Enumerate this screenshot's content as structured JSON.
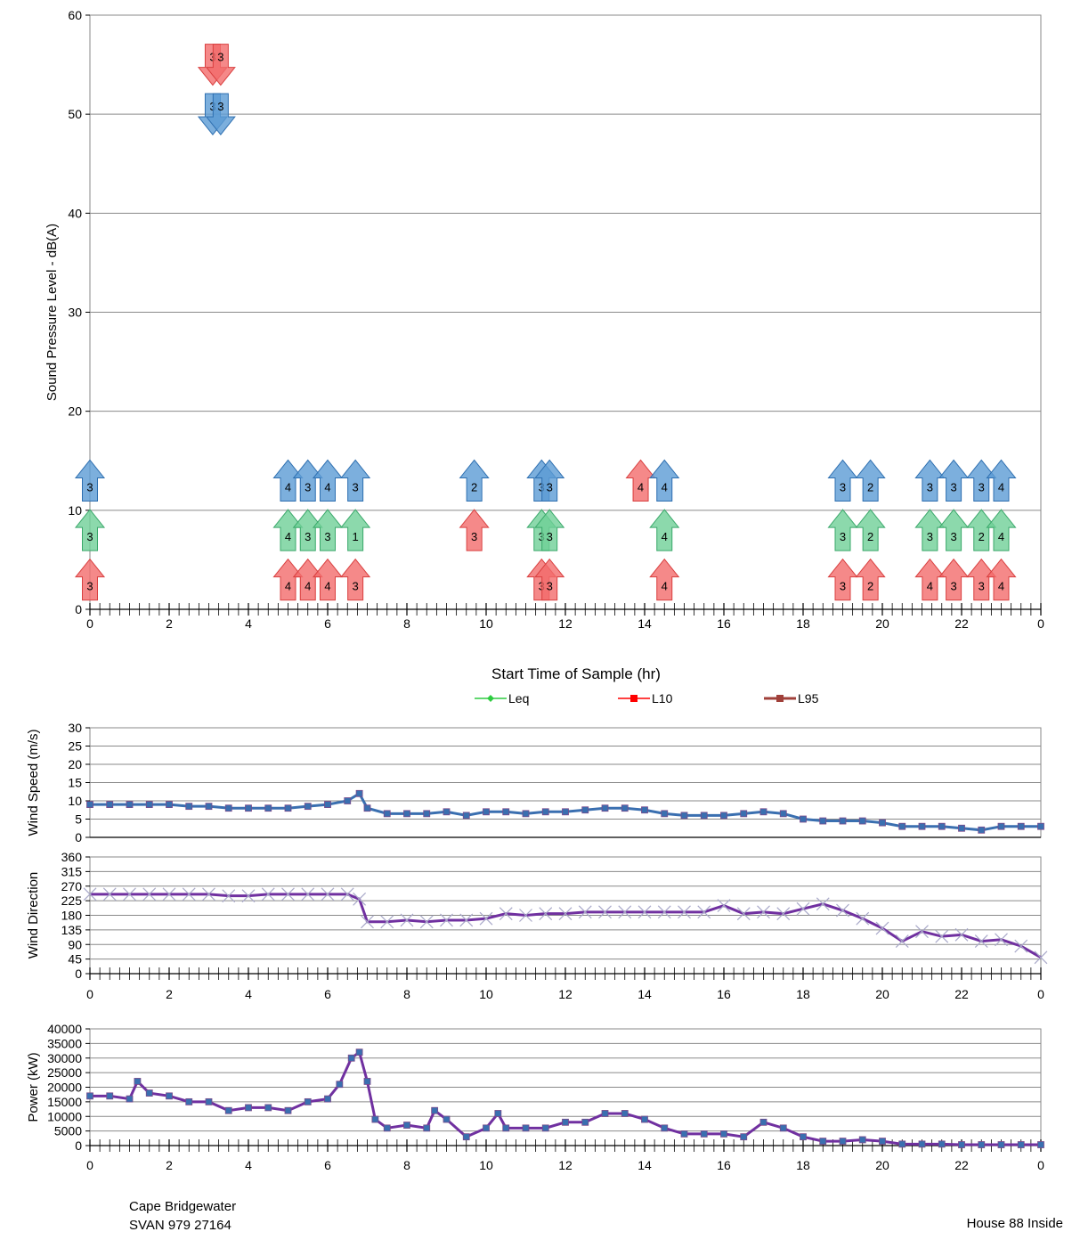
{
  "footer": {
    "site": "Cape Bridgewater",
    "instrument": "SVAN 979 27164",
    "location": "House 88 Inside"
  },
  "colors": {
    "leq": "#2ecc40",
    "l10": "#ff0000",
    "l95": "#a0403a",
    "red_arrow": "#f26b6b",
    "green_arrow": "#6fcf97",
    "blue_arrow": "#5b9bd5",
    "wind_speed": "#3a6fb0",
    "wind_dir": "#7030a0",
    "power": "#7030a0"
  },
  "chart_data": [
    {
      "id": "spl",
      "type": "scatter",
      "title": "",
      "ylabel": "Sound Pressure Level - dB(A)",
      "xlabel": "Start Time of Sample (hr)",
      "ylim": [
        0,
        60
      ],
      "yticks": [
        "0",
        "10",
        "20",
        "30",
        "40",
        "50",
        "60"
      ],
      "xlim": [
        0,
        24
      ],
      "xtick_labels": [
        "0",
        "2",
        "4",
        "6",
        "8",
        "10",
        "12",
        "14",
        "16",
        "18",
        "20",
        "22",
        "0"
      ],
      "grid": true,
      "legend": {
        "placement": "bottom",
        "entries": [
          "Leq",
          "L10",
          "L95"
        ]
      },
      "arrows": [
        {
          "x": 3.1,
          "y": 55,
          "dir": "down",
          "color": "red",
          "label": "3"
        },
        {
          "x": 3.3,
          "y": 55,
          "dir": "down",
          "color": "red",
          "label": "3"
        },
        {
          "x": 3.1,
          "y": 50,
          "dir": "down",
          "color": "blue",
          "label": "3"
        },
        {
          "x": 3.3,
          "y": 50,
          "dir": "down",
          "color": "blue",
          "label": "3"
        },
        {
          "x": 0.0,
          "y": 3,
          "dir": "up",
          "color": "red",
          "label": "3"
        },
        {
          "x": 0.0,
          "y": 8,
          "dir": "up",
          "color": "green",
          "label": "3"
        },
        {
          "x": 0.0,
          "y": 13,
          "dir": "up",
          "color": "blue",
          "label": "3"
        },
        {
          "x": 5.0,
          "y": 3,
          "dir": "up",
          "color": "red",
          "label": "4"
        },
        {
          "x": 5.5,
          "y": 3,
          "dir": "up",
          "color": "red",
          "label": "4"
        },
        {
          "x": 6.0,
          "y": 3,
          "dir": "up",
          "color": "red",
          "label": "4"
        },
        {
          "x": 6.7,
          "y": 3,
          "dir": "up",
          "color": "red",
          "label": "3"
        },
        {
          "x": 5.0,
          "y": 8,
          "dir": "up",
          "color": "green",
          "label": "4"
        },
        {
          "x": 5.5,
          "y": 8,
          "dir": "up",
          "color": "green",
          "label": "3"
        },
        {
          "x": 6.0,
          "y": 8,
          "dir": "up",
          "color": "green",
          "label": "3"
        },
        {
          "x": 6.7,
          "y": 8,
          "dir": "up",
          "color": "green",
          "label": "1"
        },
        {
          "x": 5.0,
          "y": 13,
          "dir": "up",
          "color": "blue",
          "label": "4"
        },
        {
          "x": 5.5,
          "y": 13,
          "dir": "up",
          "color": "blue",
          "label": "3"
        },
        {
          "x": 6.0,
          "y": 13,
          "dir": "up",
          "color": "blue",
          "label": "4"
        },
        {
          "x": 6.7,
          "y": 13,
          "dir": "up",
          "color": "blue",
          "label": "3"
        },
        {
          "x": 9.7,
          "y": 8,
          "dir": "up",
          "color": "red",
          "label": "3"
        },
        {
          "x": 9.7,
          "y": 13,
          "dir": "up",
          "color": "blue",
          "label": "2"
        },
        {
          "x": 11.4,
          "y": 3,
          "dir": "up",
          "color": "red",
          "label": "3"
        },
        {
          "x": 11.6,
          "y": 3,
          "dir": "up",
          "color": "red",
          "label": "3"
        },
        {
          "x": 11.4,
          "y": 8,
          "dir": "up",
          "color": "green",
          "label": "3"
        },
        {
          "x": 11.6,
          "y": 8,
          "dir": "up",
          "color": "green",
          "label": "3"
        },
        {
          "x": 11.4,
          "y": 13,
          "dir": "up",
          "color": "blue",
          "label": "3"
        },
        {
          "x": 11.6,
          "y": 13,
          "dir": "up",
          "color": "blue",
          "label": "3"
        },
        {
          "x": 13.9,
          "y": 13,
          "dir": "up",
          "color": "red",
          "label": "4"
        },
        {
          "x": 14.5,
          "y": 3,
          "dir": "up",
          "color": "red",
          "label": "4"
        },
        {
          "x": 14.5,
          "y": 8,
          "dir": "up",
          "color": "green",
          "label": "4"
        },
        {
          "x": 14.5,
          "y": 13,
          "dir": "up",
          "color": "blue",
          "label": "4"
        },
        {
          "x": 19.0,
          "y": 3,
          "dir": "up",
          "color": "red",
          "label": "3"
        },
        {
          "x": 19.7,
          "y": 3,
          "dir": "up",
          "color": "red",
          "label": "2"
        },
        {
          "x": 19.0,
          "y": 8,
          "dir": "up",
          "color": "green",
          "label": "3"
        },
        {
          "x": 19.7,
          "y": 8,
          "dir": "up",
          "color": "green",
          "label": "2"
        },
        {
          "x": 19.0,
          "y": 13,
          "dir": "up",
          "color": "blue",
          "label": "3"
        },
        {
          "x": 19.7,
          "y": 13,
          "dir": "up",
          "color": "blue",
          "label": "2"
        },
        {
          "x": 21.2,
          "y": 3,
          "dir": "up",
          "color": "red",
          "label": "4"
        },
        {
          "x": 21.8,
          "y": 3,
          "dir": "up",
          "color": "red",
          "label": "3"
        },
        {
          "x": 22.5,
          "y": 3,
          "dir": "up",
          "color": "red",
          "label": "3"
        },
        {
          "x": 23.0,
          "y": 3,
          "dir": "up",
          "color": "red",
          "label": "4"
        },
        {
          "x": 21.2,
          "y": 8,
          "dir": "up",
          "color": "green",
          "label": "3"
        },
        {
          "x": 21.8,
          "y": 8,
          "dir": "up",
          "color": "green",
          "label": "3"
        },
        {
          "x": 22.5,
          "y": 8,
          "dir": "up",
          "color": "green",
          "label": "2"
        },
        {
          "x": 23.0,
          "y": 8,
          "dir": "up",
          "color": "green",
          "label": "4"
        },
        {
          "x": 21.2,
          "y": 13,
          "dir": "up",
          "color": "blue",
          "label": "3"
        },
        {
          "x": 21.8,
          "y": 13,
          "dir": "up",
          "color": "blue",
          "label": "3"
        },
        {
          "x": 22.5,
          "y": 13,
          "dir": "up",
          "color": "blue",
          "label": "3"
        },
        {
          "x": 23.0,
          "y": 13,
          "dir": "up",
          "color": "blue",
          "label": "4"
        }
      ]
    },
    {
      "id": "wind_speed",
      "type": "line",
      "ylabel": "Wind Speed (m/s)",
      "ylim": [
        0,
        30
      ],
      "yticks": [
        "0",
        "5",
        "10",
        "15",
        "20",
        "25",
        "30"
      ],
      "xlim": [
        0,
        24
      ],
      "grid": true,
      "x": [
        0,
        0.5,
        1,
        1.5,
        2,
        2.5,
        3,
        3.5,
        4,
        4.5,
        5,
        5.5,
        6,
        6.5,
        6.8,
        7,
        7.5,
        8,
        8.5,
        9,
        9.5,
        10,
        10.5,
        11,
        11.5,
        12,
        12.5,
        13,
        13.5,
        14,
        14.5,
        15,
        15.5,
        16,
        16.5,
        17,
        17.5,
        18,
        18.5,
        19,
        19.5,
        20,
        20.5,
        21,
        21.5,
        22,
        22.5,
        23,
        23.5,
        24
      ],
      "values": [
        9,
        9,
        9,
        9,
        9,
        8.5,
        8.5,
        8,
        8,
        8,
        8,
        8.5,
        9,
        10,
        12,
        8,
        6.5,
        6.5,
        6.5,
        7,
        6,
        7,
        7,
        6.5,
        7,
        7,
        7.5,
        8,
        8,
        7.5,
        6.5,
        6,
        6,
        6,
        6.5,
        7,
        6.5,
        5,
        4.5,
        4.5,
        4.5,
        4,
        3,
        3,
        3,
        2.5,
        2,
        3,
        3,
        3
      ]
    },
    {
      "id": "wind_direction",
      "type": "line",
      "ylabel": "Wind Direction",
      "ylim": [
        0,
        360
      ],
      "yticks": [
        "0",
        "45",
        "90",
        "135",
        "180",
        "225",
        "270",
        "315",
        "360"
      ],
      "xlim": [
        0,
        24
      ],
      "xtick_labels": [
        "0",
        "2",
        "4",
        "6",
        "8",
        "10",
        "12",
        "14",
        "16",
        "18",
        "20",
        "22",
        "0"
      ],
      "grid": true,
      "x": [
        0,
        0.5,
        1,
        1.5,
        2,
        2.5,
        3,
        3.5,
        4,
        4.5,
        5,
        5.5,
        6,
        6.5,
        6.8,
        7,
        7.5,
        8,
        8.5,
        9,
        9.5,
        10,
        10.5,
        11,
        11.5,
        12,
        12.5,
        13,
        13.5,
        14,
        14.5,
        15,
        15.5,
        16,
        16.5,
        17,
        17.5,
        18,
        18.5,
        19,
        19.5,
        20,
        20.5,
        21,
        21.5,
        22,
        22.5,
        23,
        23.5,
        24
      ],
      "values": [
        245,
        245,
        245,
        245,
        245,
        245,
        245,
        240,
        240,
        245,
        245,
        245,
        245,
        245,
        230,
        160,
        160,
        165,
        160,
        165,
        165,
        170,
        185,
        180,
        185,
        185,
        190,
        190,
        190,
        190,
        190,
        190,
        190,
        210,
        185,
        190,
        185,
        200,
        215,
        195,
        170,
        140,
        100,
        130,
        115,
        120,
        100,
        105,
        85,
        50
      ]
    },
    {
      "id": "power",
      "type": "line",
      "ylabel": "Power (kW)",
      "ylim": [
        0,
        40000
      ],
      "yticks": [
        "0",
        "5000",
        "10000",
        "15000",
        "20000",
        "25000",
        "30000",
        "35000",
        "40000"
      ],
      "xlim": [
        0,
        24
      ],
      "xtick_labels": [
        "0",
        "2",
        "4",
        "6",
        "8",
        "10",
        "12",
        "14",
        "16",
        "18",
        "20",
        "22",
        "0"
      ],
      "grid": true,
      "x": [
        0,
        0.5,
        1,
        1.2,
        1.5,
        2,
        2.5,
        3,
        3.5,
        4,
        4.5,
        5,
        5.5,
        6,
        6.3,
        6.6,
        6.8,
        7,
        7.2,
        7.5,
        8,
        8.5,
        8.7,
        9,
        9.5,
        10,
        10.3,
        10.5,
        11,
        11.5,
        12,
        12.5,
        13,
        13.5,
        14,
        14.5,
        15,
        15.5,
        16,
        16.5,
        17,
        17.5,
        18,
        18.5,
        19,
        19.5,
        20,
        20.5,
        21,
        21.5,
        22,
        22.5,
        23,
        23.5,
        24
      ],
      "values": [
        17000,
        17000,
        16000,
        22000,
        18000,
        17000,
        15000,
        15000,
        12000,
        13000,
        13000,
        12000,
        15000,
        16000,
        21000,
        30000,
        32000,
        22000,
        9000,
        6000,
        7000,
        6000,
        12000,
        9000,
        3000,
        6000,
        11000,
        6000,
        6000,
        6000,
        8000,
        8000,
        11000,
        11000,
        9000,
        6000,
        4000,
        4000,
        4000,
        3000,
        8000,
        6000,
        3000,
        1500,
        1500,
        2000,
        1500,
        500,
        500,
        500,
        300,
        300,
        300,
        300,
        300
      ]
    }
  ]
}
